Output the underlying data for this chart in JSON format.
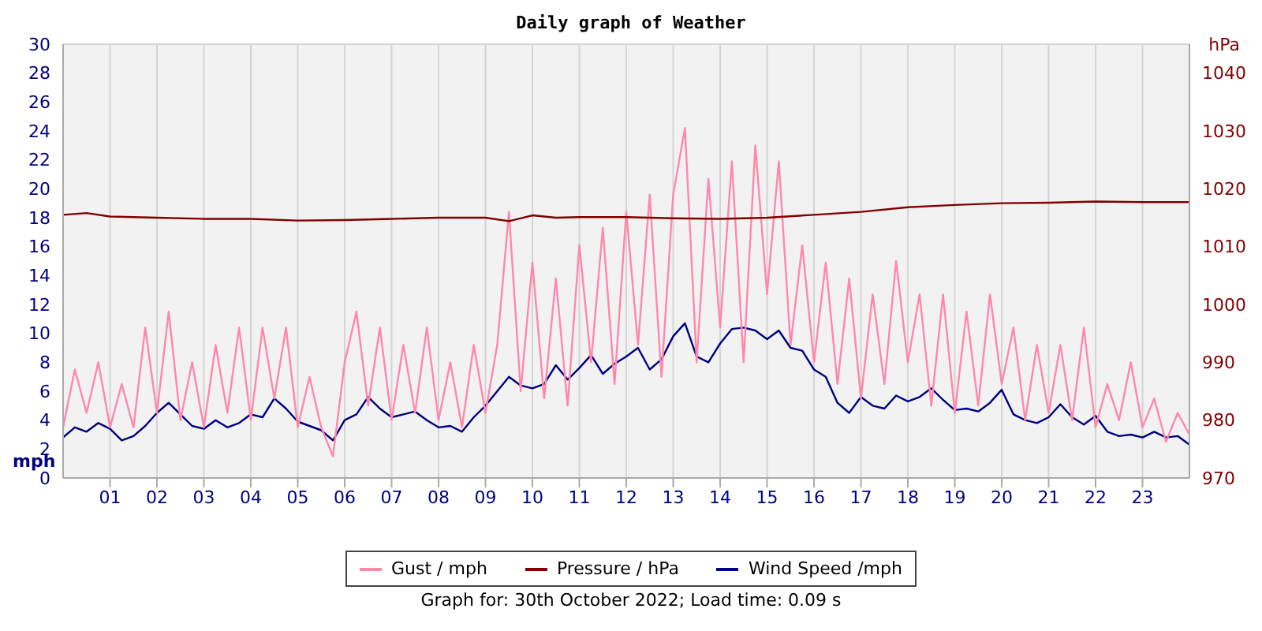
{
  "chart_data": {
    "type": "line",
    "title": "Daily graph of Weather",
    "ylabel": "mph",
    "y2label": "hPa",
    "annotations": [
      "Graph for: 30th October 2022; Load time: 0.09 s"
    ],
    "x": [
      0,
      0.25,
      0.5,
      0.75,
      1,
      1.25,
      1.5,
      1.75,
      2,
      2.25,
      2.5,
      2.75,
      3,
      3.25,
      3.5,
      3.75,
      4,
      4.25,
      4.5,
      4.75,
      5,
      5.25,
      5.5,
      5.75,
      6,
      6.25,
      6.5,
      6.75,
      7,
      7.25,
      7.5,
      7.75,
      8,
      8.25,
      8.5,
      8.75,
      9,
      9.25,
      9.5,
      9.75,
      10,
      10.25,
      10.5,
      10.75,
      11,
      11.25,
      11.5,
      11.75,
      12,
      12.25,
      12.5,
      12.75,
      13,
      13.25,
      13.5,
      13.75,
      14,
      14.25,
      14.5,
      14.75,
      15,
      15.25,
      15.5,
      15.75,
      16,
      16.25,
      16.5,
      16.75,
      17,
      17.25,
      17.5,
      17.75,
      18,
      18.25,
      18.5,
      18.75,
      19,
      19.25,
      19.5,
      19.75,
      20,
      20.25,
      20.5,
      20.75,
      21,
      21.25,
      21.5,
      21.75,
      22,
      22.25,
      22.5,
      22.75,
      23,
      23.25,
      23.5,
      23.75,
      24
    ],
    "series": [
      {
        "name": "Wind Speed /mph",
        "color": "#000080",
        "values": [
          2.8,
          3.5,
          3.2,
          3.8,
          3.4,
          2.6,
          2.9,
          3.6,
          4.5,
          5.2,
          4.4,
          3.6,
          3.4,
          4.0,
          3.5,
          3.8,
          4.4,
          4.2,
          5.5,
          4.8,
          3.9,
          3.6,
          3.3,
          2.6,
          4.0,
          4.4,
          5.6,
          4.8,
          4.2,
          4.4,
          4.6,
          4.0,
          3.5,
          3.6,
          3.2,
          4.2,
          5.0,
          6.0,
          7.0,
          6.4,
          6.2,
          6.5,
          7.8,
          6.8,
          7.6,
          8.5,
          7.2,
          7.9,
          8.4,
          9.0,
          7.5,
          8.2,
          9.8,
          10.7,
          8.4,
          8.0,
          9.3,
          10.3,
          10.4,
          10.2,
          9.6,
          10.2,
          9.0,
          8.8,
          7.5,
          7.0,
          5.2,
          4.5,
          5.6,
          5.0,
          4.8,
          5.7,
          5.3,
          5.6,
          6.2,
          5.4,
          4.7,
          4.8,
          4.6,
          5.2,
          6.1,
          4.4,
          4.0,
          3.8,
          4.2,
          5.1,
          4.2,
          3.7,
          4.3,
          3.2,
          2.9,
          3.0,
          2.8,
          3.2,
          2.8,
          2.9,
          2.3
        ]
      },
      {
        "name": "Gust / mph",
        "color": "#ff88aa",
        "values": [
          3.5,
          7.5,
          4.5,
          8.0,
          3.5,
          6.5,
          3.5,
          10.4,
          4.5,
          11.5,
          4.0,
          8.0,
          3.5,
          9.2,
          4.5,
          10.4,
          4.0,
          10.4,
          5.5,
          10.4,
          3.5,
          7.0,
          3.5,
          1.5,
          8.0,
          11.5,
          5.0,
          10.4,
          4.0,
          9.2,
          4.5,
          10.4,
          4.0,
          8.0,
          3.5,
          9.2,
          4.5,
          9.2,
          18.4,
          6.0,
          14.9,
          5.5,
          13.8,
          5.0,
          16.1,
          8.0,
          17.3,
          6.5,
          18.4,
          9.2,
          19.6,
          7.0,
          19.6,
          24.2,
          8.0,
          20.7,
          10.4,
          21.9,
          8.0,
          23.0,
          12.7,
          21.9,
          9.2,
          16.1,
          8.0,
          14.9,
          6.5,
          13.8,
          5.5,
          12.7,
          6.5,
          15.0,
          8.0,
          12.7,
          5.0,
          12.7,
          4.5,
          11.5,
          5.0,
          12.7,
          6.5,
          10.4,
          4.0,
          9.2,
          4.5,
          9.2,
          4.0,
          10.4,
          3.5,
          6.5,
          4.0,
          8.0,
          3.5,
          5.5,
          2.5,
          4.5,
          3.0
        ]
      },
      {
        "name": "Pressure / hPa",
        "color": "#800000",
        "axis": "y2",
        "x": [
          0,
          0.5,
          1,
          2,
          3,
          4,
          5,
          6,
          7,
          8,
          9,
          9.5,
          10,
          10.5,
          11,
          12,
          13,
          14,
          15,
          16,
          17,
          18,
          19,
          20,
          21,
          22,
          23,
          24
        ],
        "values": [
          1015.5,
          1015.8,
          1015.2,
          1015,
          1014.8,
          1014.8,
          1014.5,
          1014.6,
          1014.8,
          1015,
          1015,
          1014.4,
          1015.4,
          1015,
          1015.1,
          1015.1,
          1014.9,
          1014.8,
          1015,
          1015.5,
          1016,
          1016.8,
          1017.2,
          1017.5,
          1017.6,
          1017.8,
          1017.7,
          1017.7
        ]
      }
    ],
    "xlim": [
      0,
      24
    ],
    "xticks": [
      {
        "value": 1,
        "label": "01"
      },
      {
        "value": 2,
        "label": "02"
      },
      {
        "value": 3,
        "label": "03"
      },
      {
        "value": 4,
        "label": "04"
      },
      {
        "value": 5,
        "label": "05"
      },
      {
        "value": 6,
        "label": "06"
      },
      {
        "value": 7,
        "label": "07"
      },
      {
        "value": 8,
        "label": "08"
      },
      {
        "value": 9,
        "label": "09"
      },
      10,
      11,
      12,
      13,
      14,
      15,
      16,
      17,
      18,
      19,
      20,
      21,
      22,
      23
    ],
    "ylim": [
      0,
      30
    ],
    "yticks": [
      0,
      2,
      4,
      6,
      8,
      10,
      12,
      14,
      16,
      18,
      20,
      22,
      24,
      26,
      28,
      30
    ],
    "y2lim": [
      970,
      1045
    ],
    "y2ticks": [
      970,
      980,
      990,
      1000,
      1010,
      1020,
      1030,
      1040
    ],
    "grid": true,
    "legend": "bottom"
  }
}
